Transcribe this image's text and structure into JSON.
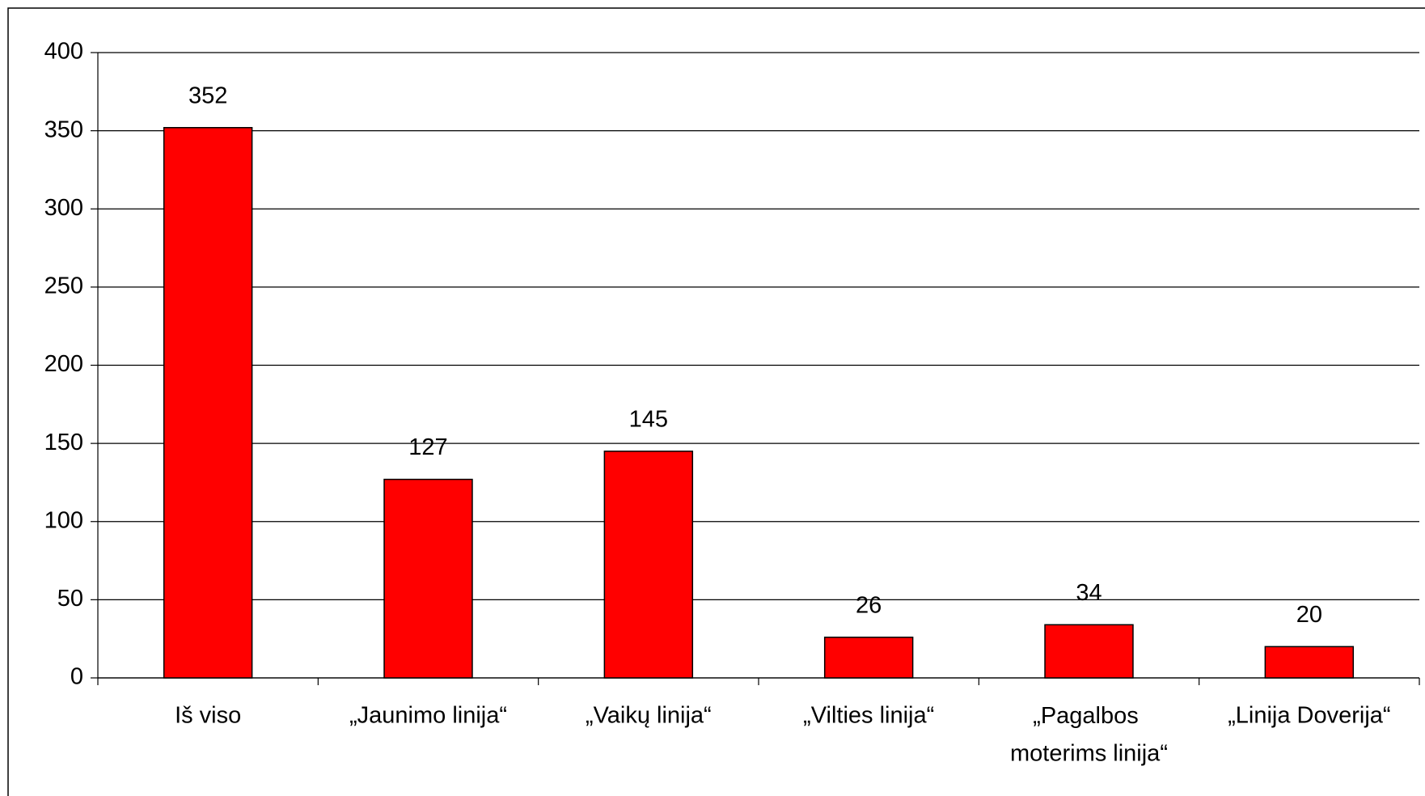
{
  "chart_data": {
    "type": "bar",
    "categories": [
      "Iš viso",
      "„Jaunimo linija“",
      "„Vaikų linija“",
      "„Vilties linija“",
      "„Pagalbos moterims linija“",
      "„Linija Doverija“"
    ],
    "values": [
      352,
      127,
      145,
      26,
      34,
      20
    ],
    "color": "#ff0000",
    "ylim": [
      0,
      400
    ],
    "yticks": [
      0,
      50,
      100,
      150,
      200,
      250,
      300,
      350,
      400
    ],
    "grid": true
  }
}
